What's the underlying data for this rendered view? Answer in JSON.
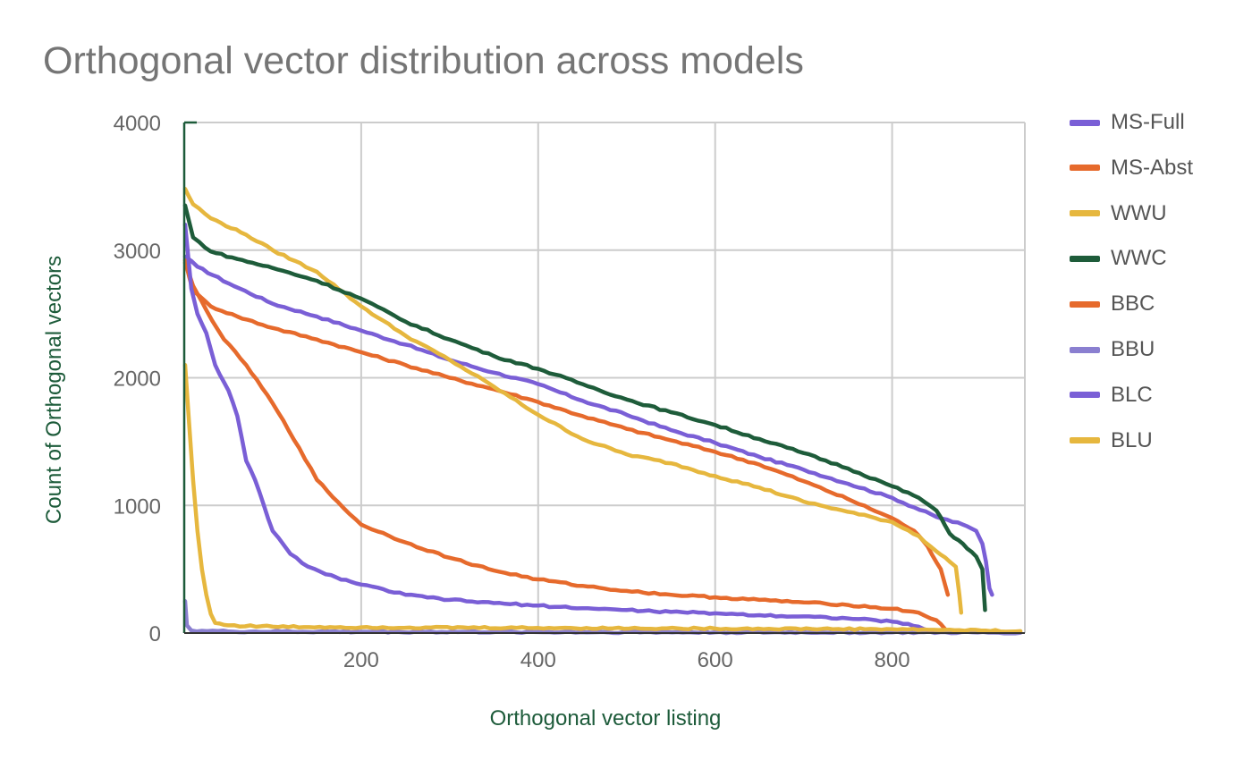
{
  "chart_data": {
    "type": "line",
    "title": "Orthogonal vector distribution across models",
    "xlabel": "Orthogonal vector listing",
    "ylabel": "Count of Orthogonal vectors",
    "xlim": [
      0,
      950
    ],
    "ylim": [
      0,
      4000
    ],
    "x_ticks": [
      200,
      400,
      600,
      800
    ],
    "y_ticks": [
      0,
      1000,
      2000,
      3000,
      4000
    ],
    "grid": true,
    "legend_position": "right",
    "series": [
      {
        "name": "MS-Full",
        "color": "#7a5fd6",
        "points": [
          [
            1,
            2950
          ],
          [
            15,
            2870
          ],
          [
            50,
            2740
          ],
          [
            100,
            2580
          ],
          [
            150,
            2480
          ],
          [
            200,
            2370
          ],
          [
            250,
            2260
          ],
          [
            300,
            2140
          ],
          [
            350,
            2040
          ],
          [
            400,
            1950
          ],
          [
            450,
            1820
          ],
          [
            500,
            1710
          ],
          [
            550,
            1590
          ],
          [
            600,
            1490
          ],
          [
            650,
            1380
          ],
          [
            700,
            1280
          ],
          [
            750,
            1170
          ],
          [
            800,
            1060
          ],
          [
            850,
            910
          ],
          [
            880,
            850
          ],
          [
            895,
            800
          ],
          [
            902,
            700
          ],
          [
            906,
            560
          ],
          [
            910,
            350
          ],
          [
            913,
            300
          ]
        ]
      },
      {
        "name": "MS-Abst",
        "color": "#e66a2c",
        "points": [
          [
            1,
            2920
          ],
          [
            10,
            2680
          ],
          [
            30,
            2560
          ],
          [
            60,
            2480
          ],
          [
            100,
            2390
          ],
          [
            150,
            2300
          ],
          [
            200,
            2200
          ],
          [
            250,
            2100
          ],
          [
            300,
            2000
          ],
          [
            350,
            1910
          ],
          [
            400,
            1810
          ],
          [
            450,
            1700
          ],
          [
            500,
            1600
          ],
          [
            550,
            1510
          ],
          [
            600,
            1420
          ],
          [
            650,
            1320
          ],
          [
            700,
            1190
          ],
          [
            750,
            1050
          ],
          [
            800,
            900
          ],
          [
            825,
            800
          ],
          [
            840,
            680
          ],
          [
            855,
            500
          ],
          [
            863,
            300
          ]
        ]
      },
      {
        "name": "WWU",
        "color": "#e6b73e",
        "points": [
          [
            1,
            3480
          ],
          [
            10,
            3360
          ],
          [
            30,
            3250
          ],
          [
            70,
            3120
          ],
          [
            100,
            3000
          ],
          [
            150,
            2830
          ],
          [
            200,
            2560
          ],
          [
            250,
            2330
          ],
          [
            300,
            2140
          ],
          [
            350,
            1930
          ],
          [
            400,
            1710
          ],
          [
            450,
            1520
          ],
          [
            500,
            1400
          ],
          [
            550,
            1330
          ],
          [
            600,
            1230
          ],
          [
            650,
            1140
          ],
          [
            700,
            1030
          ],
          [
            750,
            950
          ],
          [
            800,
            870
          ],
          [
            830,
            760
          ],
          [
            850,
            640
          ],
          [
            865,
            560
          ],
          [
            872,
            520
          ],
          [
            876,
            300
          ],
          [
            878,
            160
          ]
        ]
      },
      {
        "name": "WWC",
        "color": "#1e5c3a",
        "points": [
          [
            1,
            3350
          ],
          [
            10,
            3100
          ],
          [
            30,
            2990
          ],
          [
            60,
            2930
          ],
          [
            100,
            2860
          ],
          [
            150,
            2760
          ],
          [
            200,
            2620
          ],
          [
            250,
            2440
          ],
          [
            300,
            2300
          ],
          [
            350,
            2170
          ],
          [
            400,
            2070
          ],
          [
            450,
            1950
          ],
          [
            500,
            1830
          ],
          [
            550,
            1730
          ],
          [
            600,
            1630
          ],
          [
            650,
            1520
          ],
          [
            700,
            1410
          ],
          [
            750,
            1290
          ],
          [
            800,
            1150
          ],
          [
            830,
            1060
          ],
          [
            850,
            960
          ],
          [
            865,
            780
          ],
          [
            880,
            700
          ],
          [
            895,
            600
          ],
          [
            902,
            500
          ],
          [
            905,
            180
          ]
        ]
      },
      {
        "name": "BBC",
        "color": "#e66a2c",
        "points": [
          [
            1,
            2900
          ],
          [
            10,
            2720
          ],
          [
            25,
            2530
          ],
          [
            45,
            2300
          ],
          [
            70,
            2100
          ],
          [
            100,
            1800
          ],
          [
            130,
            1450
          ],
          [
            150,
            1200
          ],
          [
            180,
            980
          ],
          [
            200,
            850
          ],
          [
            250,
            710
          ],
          [
            300,
            590
          ],
          [
            350,
            490
          ],
          [
            400,
            420
          ],
          [
            450,
            370
          ],
          [
            500,
            330
          ],
          [
            550,
            300
          ],
          [
            600,
            280
          ],
          [
            650,
            260
          ],
          [
            700,
            240
          ],
          [
            750,
            220
          ],
          [
            800,
            190
          ],
          [
            830,
            160
          ],
          [
            850,
            100
          ],
          [
            860,
            30
          ],
          [
            865,
            10
          ]
        ]
      },
      {
        "name": "BBU",
        "color": "#8a7fd0",
        "points": [
          [
            1,
            250
          ],
          [
            3,
            60
          ],
          [
            8,
            20
          ],
          [
            50,
            12
          ],
          [
            200,
            10
          ],
          [
            400,
            8
          ],
          [
            600,
            6
          ],
          [
            800,
            5
          ],
          [
            945,
            3
          ]
        ]
      },
      {
        "name": "BLC",
        "color": "#7a5fd6",
        "points": [
          [
            1,
            3200
          ],
          [
            8,
            2700
          ],
          [
            15,
            2500
          ],
          [
            25,
            2350
          ],
          [
            35,
            2100
          ],
          [
            50,
            1900
          ],
          [
            60,
            1700
          ],
          [
            70,
            1350
          ],
          [
            80,
            1200
          ],
          [
            90,
            1000
          ],
          [
            100,
            800
          ],
          [
            120,
            620
          ],
          [
            140,
            520
          ],
          [
            160,
            460
          ],
          [
            200,
            380
          ],
          [
            250,
            300
          ],
          [
            300,
            260
          ],
          [
            350,
            235
          ],
          [
            400,
            215
          ],
          [
            450,
            195
          ],
          [
            500,
            180
          ],
          [
            550,
            165
          ],
          [
            600,
            155
          ],
          [
            650,
            140
          ],
          [
            700,
            130
          ],
          [
            750,
            115
          ],
          [
            800,
            90
          ],
          [
            830,
            50
          ],
          [
            845,
            10
          ]
        ]
      },
      {
        "name": "BLU",
        "color": "#e6b73e",
        "points": [
          [
            1,
            2100
          ],
          [
            5,
            1700
          ],
          [
            10,
            1200
          ],
          [
            15,
            800
          ],
          [
            20,
            500
          ],
          [
            25,
            300
          ],
          [
            30,
            150
          ],
          [
            35,
            80
          ],
          [
            50,
            60
          ],
          [
            100,
            50
          ],
          [
            200,
            45
          ],
          [
            400,
            40
          ],
          [
            600,
            35
          ],
          [
            800,
            30
          ],
          [
            900,
            20
          ],
          [
            945,
            15
          ]
        ]
      }
    ]
  }
}
